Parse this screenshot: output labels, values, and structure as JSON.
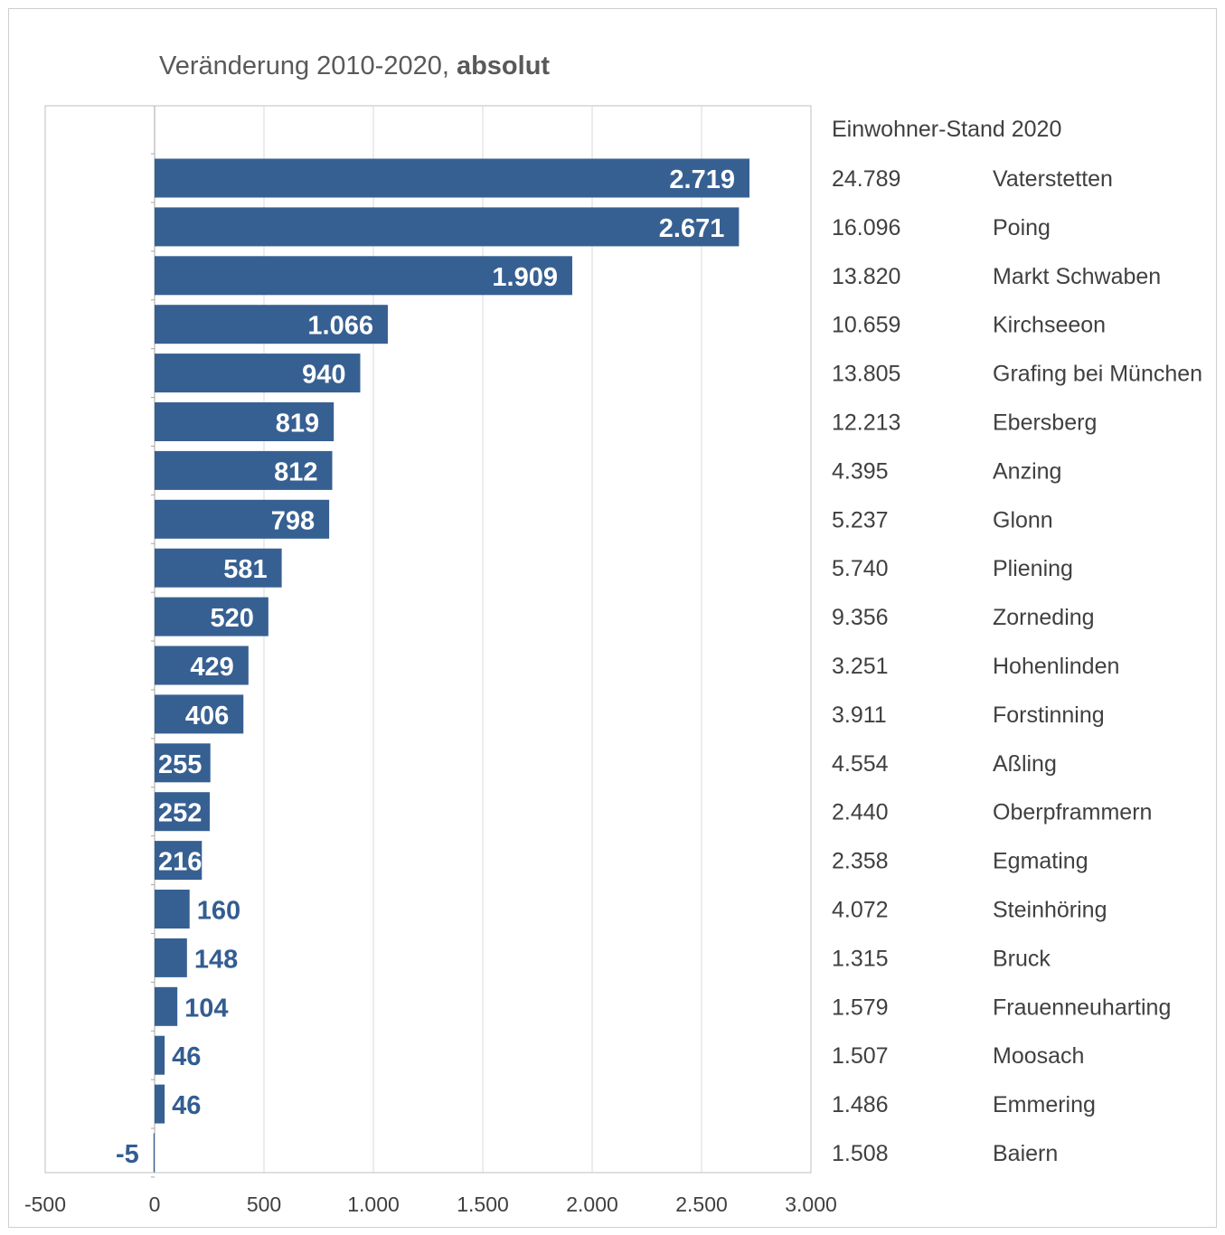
{
  "chart_data": {
    "type": "bar",
    "orientation": "horizontal",
    "title": "Veränderung 2010-2020, ",
    "title_bold": "absolut",
    "table_header": "Einwohner-Stand 2020",
    "xlim": [
      -500,
      3000
    ],
    "x_ticks": [
      -500,
      0,
      500,
      1000,
      1500,
      2000,
      2500,
      3000
    ],
    "x_tick_labels": [
      "-500",
      "0",
      "500",
      "1.000",
      "1.500",
      "2.000",
      "2.500",
      "3.000"
    ],
    "grid": true,
    "bar_color": "#376092",
    "label_color_outside": "#335d91",
    "categories": [
      "Vaterstetten",
      "Poing",
      "Markt Schwaben",
      "Kirchseeon",
      "Grafing bei München",
      "Ebersberg",
      "Anzing",
      "Glonn",
      "Pliening",
      "Zorneding",
      "Hohenlinden",
      "Forstinning",
      "Aßling",
      "Oberpframmern",
      "Egmating",
      "Steinhöring",
      "Bruck",
      "Frauenneuharting",
      "Moosach",
      "Emmering",
      "Baiern"
    ],
    "values": [
      2719,
      2671,
      1909,
      1066,
      940,
      819,
      812,
      798,
      581,
      520,
      429,
      406,
      255,
      252,
      216,
      160,
      148,
      104,
      46,
      46,
      -5
    ],
    "value_labels": [
      "2.719",
      "2.671",
      "1.909",
      "1.066",
      "940",
      "819",
      "812",
      "798",
      "581",
      "520",
      "429",
      "406",
      "255",
      "252",
      "216",
      "160",
      "148",
      "104",
      "46",
      "46",
      "-5"
    ],
    "population_2020": [
      "24.789",
      "16.096",
      "13.820",
      "10.659",
      "13.805",
      "12.213",
      "4.395",
      "5.237",
      "5.740",
      "9.356",
      "3.251",
      "3.911",
      "4.554",
      "2.440",
      "2.358",
      "4.072",
      "1.315",
      "1.579",
      "1.507",
      "1.486",
      "1.508"
    ]
  }
}
